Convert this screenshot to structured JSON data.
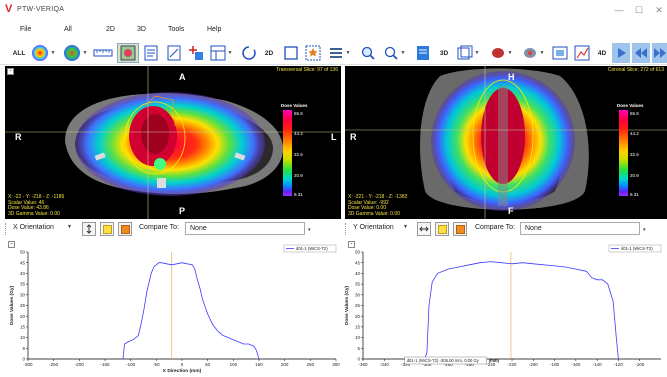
{
  "window": {
    "title": "PTW-VERIQA",
    "minimize_glyph": "—",
    "maximize_glyph": "☐",
    "close_glyph": "✕"
  },
  "menu": [
    "File",
    "All",
    "2D",
    "3D",
    "Tools",
    "Help"
  ],
  "toolbar": {
    "all_label": "ALL",
    "label_2d": "2D",
    "label_3d": "3D",
    "label_4d": "4D",
    "icons": [
      "dose-sphere-icon",
      "brain-icon",
      "ruler-icon",
      "grid-region-icon",
      "document-icon",
      "ruler-doc-icon",
      "add-point-icon",
      "layout-grid-icon",
      "rotate-icon",
      "square-select-icon",
      "star-icon",
      "slider-icon",
      "search-icon",
      "zoom-icon",
      "page-icon",
      "layers-icon",
      "organ-icon",
      "brain3d-icon",
      "overlay-icon",
      "chart-icon",
      "play-icon",
      "rewind-icon",
      "fast-forward-icon"
    ]
  },
  "viewers": {
    "left": {
      "slice_info": "Transversal Slice: 97 of 136",
      "top_label": "A",
      "bottom_label": "P",
      "left_label": "R",
      "right_label": "L",
      "legend_title": "Dose Values",
      "legend_ticks": [
        "55.9",
        "44.2",
        "32.6",
        "20.9",
        "9.31"
      ],
      "info_lines": [
        "X: -22 - Y: -218 - Z: -1186",
        "Scalar Value: 46",
        "Dose Value: 43.86",
        "3D Gamma Value: 0.00"
      ]
    },
    "right": {
      "slice_info": "Coronal Slice: 272 of 613",
      "top_label": "H",
      "bottom_label": "F",
      "left_label": "R",
      "legend_title": "Dose Values",
      "legend_ticks": [
        "55.9",
        "44.2",
        "32.6",
        "20.9",
        "9.31"
      ],
      "info_lines": [
        "X: -221 - Y: -218 - Z: -1382",
        "Scalar Value: -992",
        "Dose Value: 0.00",
        "3D Gamma Value: 0.00"
      ]
    }
  },
  "controls": {
    "left": {
      "orientation": "X Orientation",
      "compare_label": "Compare To:",
      "compare_value": "None"
    },
    "right": {
      "orientation": "Y Orientation",
      "compare_label": "Compare To:",
      "compare_value": "None"
    }
  },
  "chart_data": [
    {
      "type": "line",
      "title": "",
      "xlabel": "X Direction (mm)",
      "ylabel": "Dose Values (Gy)",
      "xlim": [
        -300,
        300
      ],
      "ylim": [
        0,
        50
      ],
      "x_ticks": [
        -300,
        -250,
        -200,
        -150,
        -100,
        -50,
        0,
        50,
        100,
        150,
        200,
        250,
        300
      ],
      "y_ticks": [
        0,
        5,
        10,
        15,
        20,
        25,
        30,
        35,
        40,
        45,
        50
      ],
      "legend": "top-right",
      "marker_x": -20,
      "series": [
        {
          "name": "d01-1 (WiCS-T2)",
          "color": "#3a3aff",
          "x": [
            -115,
            -112,
            -105,
            -95,
            -85,
            -80,
            -75,
            -68,
            -60,
            -55,
            -50,
            -45,
            -40,
            -30,
            -20,
            -10,
            0,
            10,
            20,
            25,
            30,
            35,
            40,
            50,
            60,
            70,
            80,
            90,
            100,
            110,
            120,
            130,
            140,
            145,
            150
          ],
          "y": [
            0,
            7,
            8,
            9,
            11,
            16,
            22,
            32,
            40,
            43,
            44,
            45,
            45,
            44.5,
            44,
            44.5,
            45,
            44.5,
            44,
            42,
            37,
            33,
            28,
            21,
            16,
            13,
            11,
            10,
            9,
            8,
            7,
            7,
            6,
            4,
            0
          ]
        }
      ]
    },
    {
      "type": "line",
      "title": "",
      "xlabel": "",
      "ylabel": "Dose Values (Gy)",
      "xlim": [
        -360,
        -80
      ],
      "ylim": [
        0,
        50
      ],
      "x_ticks": [
        -360,
        -340,
        -320,
        -300,
        -280,
        -260,
        -240,
        -220,
        -200,
        -180,
        -160,
        -140,
        -120,
        -100
      ],
      "y_ticks": [
        0,
        5,
        10,
        15,
        20,
        25,
        30,
        35,
        40,
        45,
        50
      ],
      "legend": "top-right",
      "marker_x": -221,
      "cursor_label": "d01-1 (WiCS-T2) -305.00 mm, 0.00 Gy",
      "cursor_unit": "(mm)",
      "series": [
        {
          "name": "d01-1 (WiCS-T2)",
          "color": "#3a3aff",
          "x": [
            -302,
            -300,
            -298,
            -295,
            -290,
            -280,
            -270,
            -260,
            -250,
            -240,
            -230,
            -220,
            -210,
            -200,
            -190,
            -180,
            -170,
            -160,
            -150,
            -145,
            -140,
            -135,
            -130,
            -125,
            -122,
            -120
          ],
          "y": [
            0,
            3,
            25,
            36,
            40,
            42,
            43,
            44,
            45,
            45.5,
            45,
            44.5,
            45,
            44.5,
            44,
            43.5,
            43,
            42,
            41,
            38,
            37,
            37,
            35,
            27,
            10,
            0
          ]
        }
      ]
    }
  ]
}
